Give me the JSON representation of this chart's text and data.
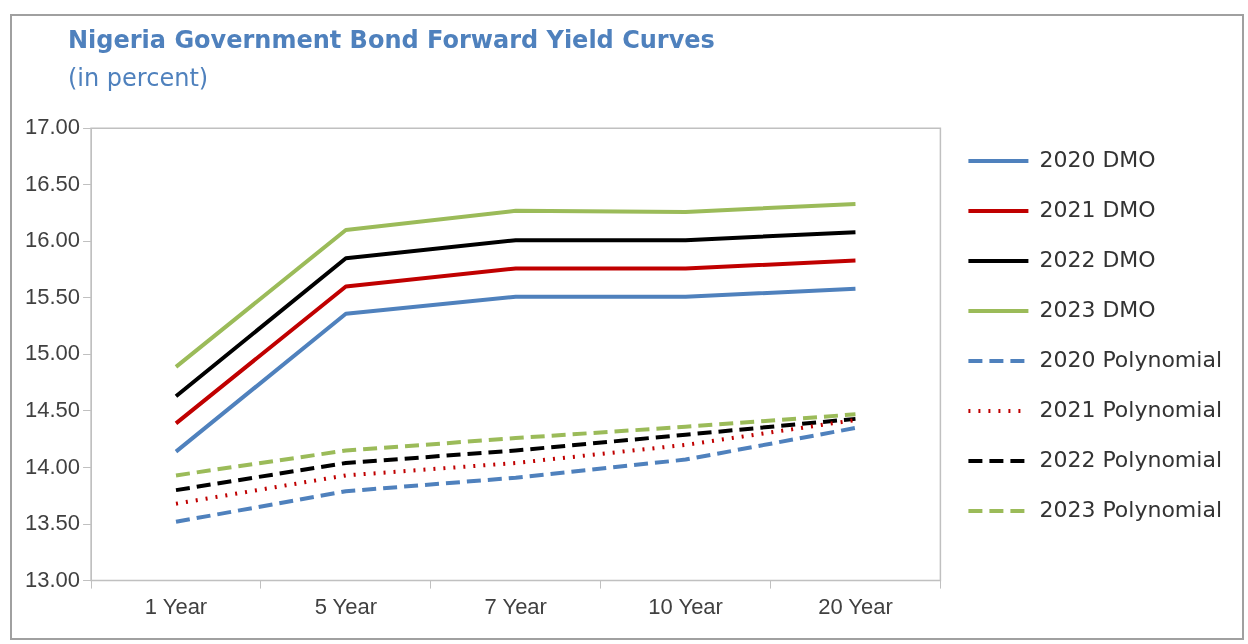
{
  "chart_data": {
    "type": "line",
    "title": "Nigeria Government Bond Forward Yield Curves",
    "subtitle": "(in percent)",
    "categories": [
      "1 Year",
      "5 Year",
      "7 Year",
      "10 Year",
      "20 Year"
    ],
    "series": [
      {
        "name": "2020 DMO",
        "color": "#4f81bd",
        "values": [
          14.14,
          15.36,
          15.51,
          15.51,
          15.58
        ]
      },
      {
        "name": "2021 DMO",
        "color": "#c00000",
        "values": [
          14.39,
          15.6,
          15.76,
          15.76,
          15.83
        ]
      },
      {
        "name": "2022 DMO",
        "color": "#000000",
        "values": [
          14.63,
          15.85,
          16.01,
          16.01,
          16.08
        ]
      },
      {
        "name": "2023 DMO",
        "color": "#9bbb59",
        "values": [
          14.89,
          16.1,
          16.27,
          16.26,
          16.33
        ]
      },
      {
        "name": "2020 Polynomial",
        "color": "#4f81bd",
        "line_style": "dashed",
        "values": [
          13.52,
          13.79,
          13.91,
          14.07,
          14.35
        ]
      },
      {
        "name": "2021 Polynomial",
        "color": "#c00000",
        "line_style": "dotted",
        "values": [
          13.68,
          13.93,
          14.04,
          14.2,
          14.42
        ]
      },
      {
        "name": "2022 Polynomial",
        "color": "#000000",
        "line_style": "dashed",
        "values": [
          13.8,
          14.04,
          14.15,
          14.29,
          14.43
        ]
      },
      {
        "name": "2023 Polynomial",
        "color": "#9bbb59",
        "line_style": "dashed",
        "values": [
          13.93,
          14.15,
          14.26,
          14.36,
          14.47
        ]
      }
    ],
    "ylim": [
      13,
      17
    ],
    "yticks": [
      {
        "value": 13,
        "label": "13.00"
      },
      {
        "value": 13.5,
        "label": "13.50"
      },
      {
        "value": 14,
        "label": "14.00"
      },
      {
        "value": 14.5,
        "label": "14.50"
      },
      {
        "value": 15,
        "label": "15.00"
      },
      {
        "value": 15.5,
        "label": "15.50"
      },
      {
        "value": 16,
        "label": "16.00"
      },
      {
        "value": 16.5,
        "label": "16.50"
      },
      {
        "value": 17,
        "label": "17.00"
      }
    ],
    "grid": false,
    "legend": "right",
    "marker": "none",
    "line_style": "solid"
  }
}
